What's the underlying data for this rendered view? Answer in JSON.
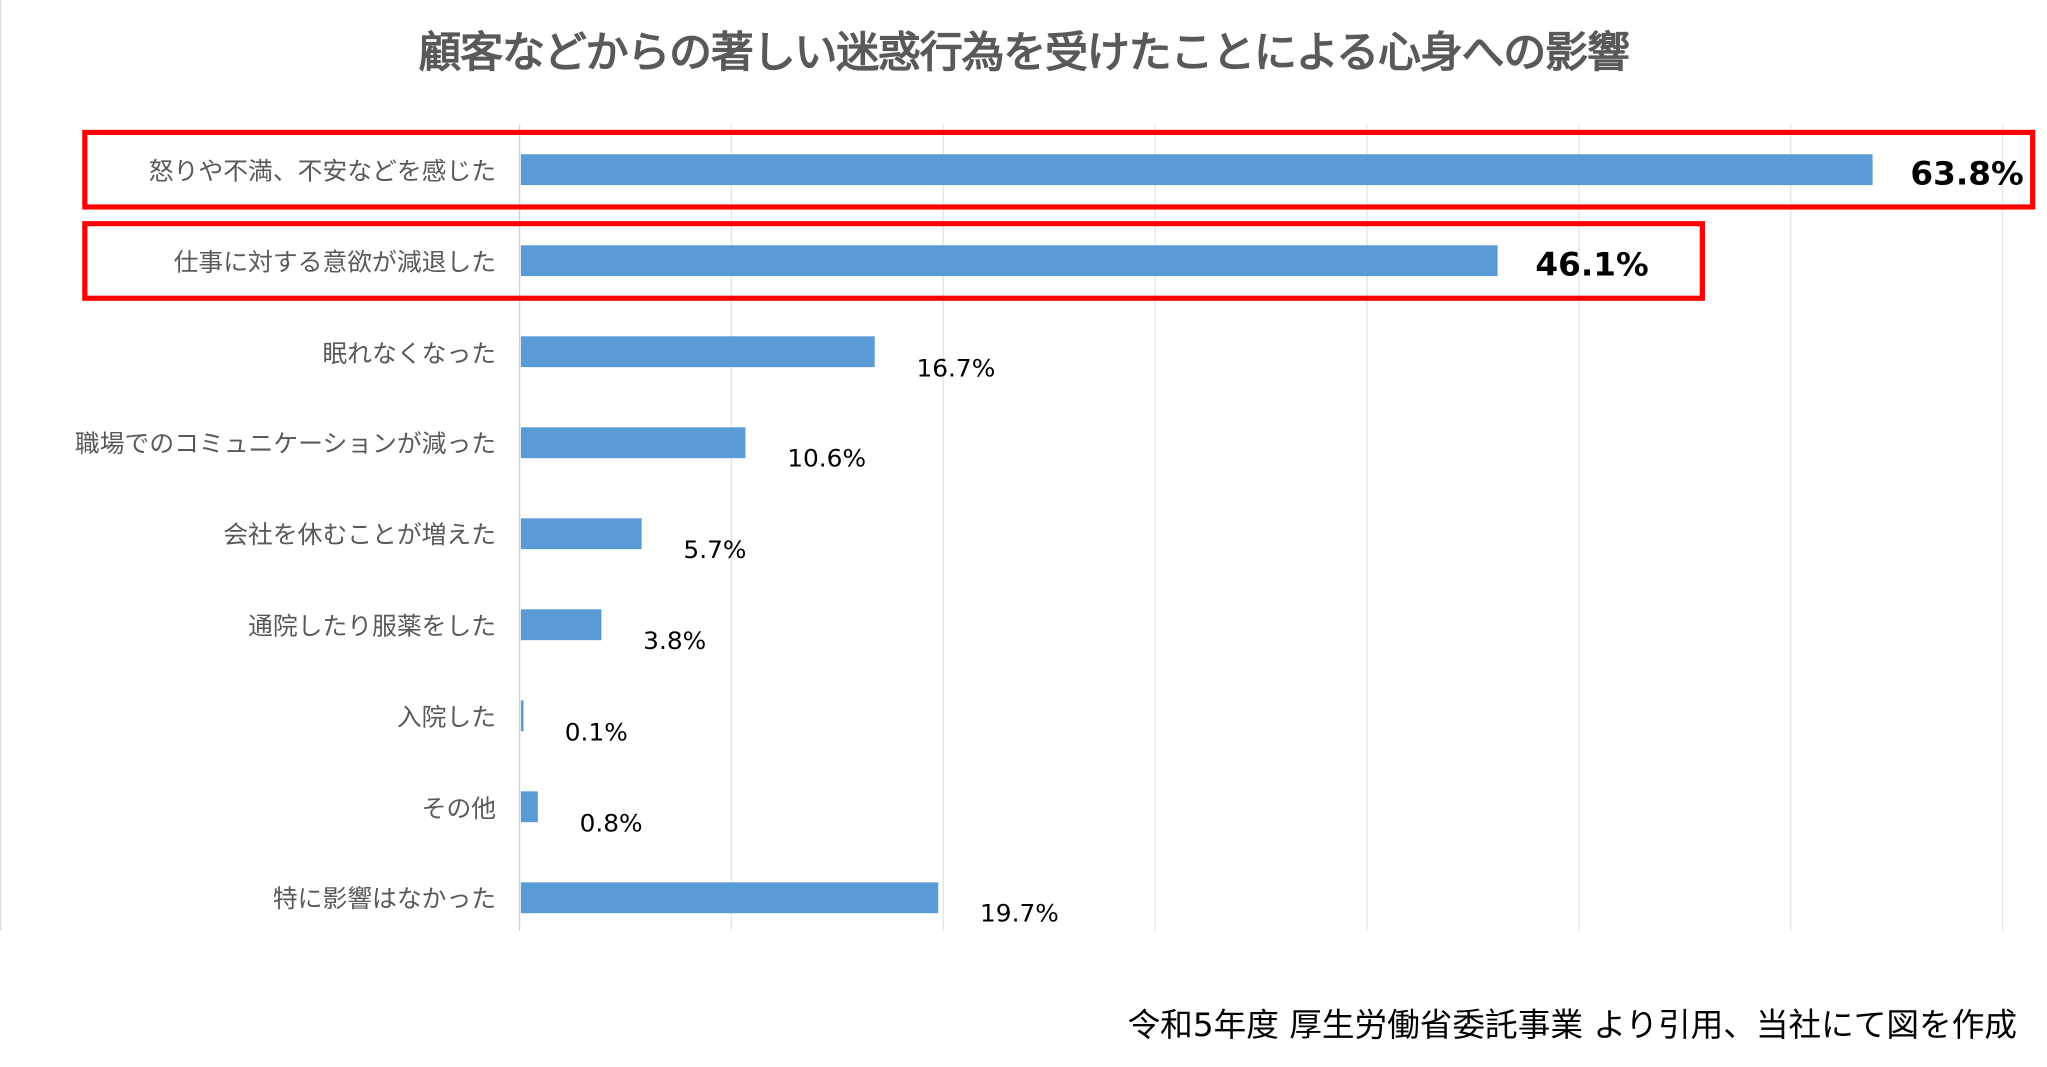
{
  "chart_data": {
    "type": "bar",
    "orientation": "horizontal",
    "title": "顧客などからの著しい迷惑行為を受けたことによる心身への影響",
    "categories": [
      "怒りや不満、不安などを感じた",
      "仕事に対する意欲が減退した",
      "眠れなくなった",
      "職場でのコミュニケーションが減った",
      "会社を休むことが増えた",
      "通院したり服薬をした",
      "入院した",
      "その他",
      "特に影響はなかった"
    ],
    "values": [
      63.8,
      46.1,
      16.7,
      10.6,
      5.7,
      3.8,
      0.1,
      0.8,
      19.7
    ],
    "value_labels": [
      "63.8%",
      "46.1%",
      "16.7%",
      "10.6%",
      "5.7%",
      "3.8%",
      "0.1%",
      "0.8%",
      "19.7%"
    ],
    "highlighted": [
      0,
      1
    ],
    "xlim": [
      0,
      70
    ],
    "grid_step": 10,
    "grid": true,
    "xlabel": "",
    "ylabel": "",
    "bar_color": "#5b9bd5",
    "highlight_color": "#ff0000"
  },
  "source": "令和5年度 厚生労働省委託事業 より引用、当社にて図を作成"
}
